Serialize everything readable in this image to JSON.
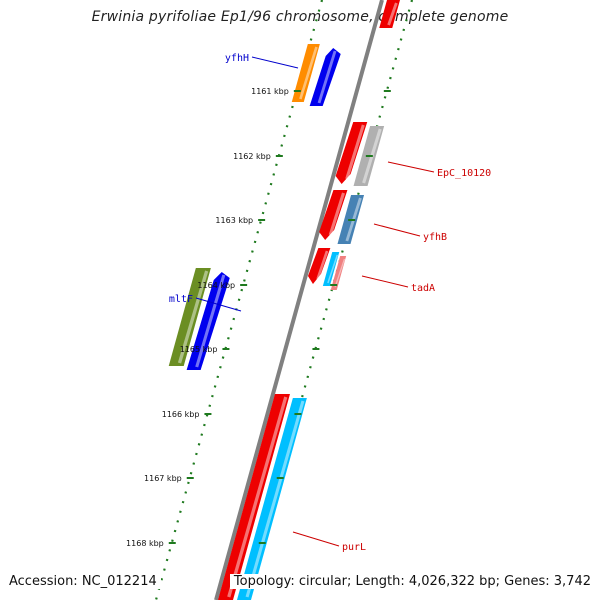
{
  "title": "Erwinia pyrifoliae Ep1/96 chromosome, complete genome",
  "accession": "Accession: NC_012214",
  "topology": "Topology: circular; Length: 4,026,322 bp; Genes: 3,742",
  "ticks": [
    "1161 kbp",
    "1162 kbp",
    "1163 kbp",
    "1164 kbp",
    "1165 kbp",
    "1166 kbp",
    "1167 kbp",
    "1168 kbp"
  ],
  "labels": {
    "yfhH": "yfhH",
    "EpC_10120": "EpC_10120",
    "yfhB": "yfhB",
    "tadA": "tadA",
    "mltF": "mltF",
    "purL": "purL"
  },
  "colors": {
    "backbone": "#808080",
    "dots": "#1f7a1f",
    "forward_label": "#0000cc",
    "reverse_label": "#cc0000",
    "blue": "#0000ee",
    "orange": "#ff8c00",
    "red": "#ee0000",
    "grey": "#b0b0b0",
    "steelblue": "#4682b4",
    "cyan": "#00bfff",
    "pink": "#f08080",
    "olive": "#6b8e23"
  }
}
